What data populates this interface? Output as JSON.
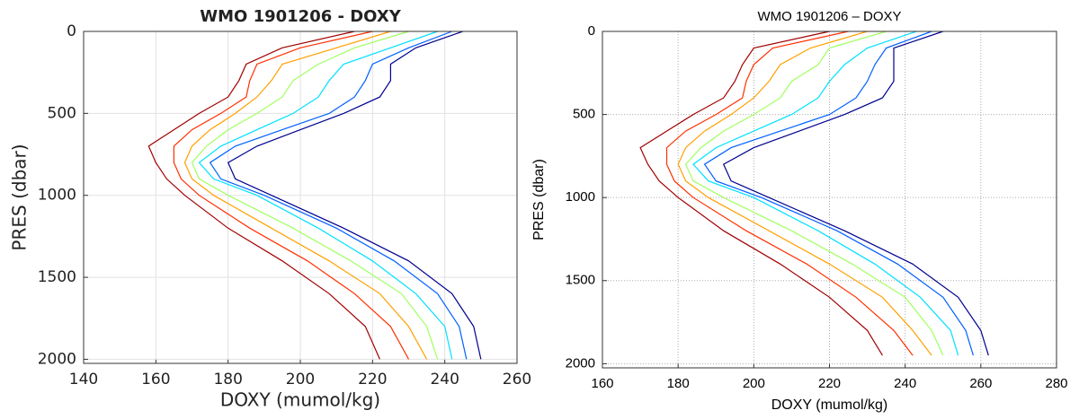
{
  "chart_data": [
    {
      "type": "line",
      "title": "WMO 1901206 - DOXY",
      "xlabel": "DOXY (mumol/kg)",
      "ylabel": "PRES (dbar)",
      "xlim": [
        140,
        260
      ],
      "xticks": [
        140,
        160,
        180,
        200,
        220,
        240,
        260
      ],
      "ylim": [
        0,
        2025
      ],
      "yticks": [
        0,
        500,
        1000,
        1500,
        2000
      ],
      "y_inverted": true,
      "grid": "solid",
      "y": [
        0,
        100,
        200,
        300,
        400,
        500,
        600,
        700,
        800,
        900,
        1000,
        1200,
        1400,
        1600,
        1800,
        2000
      ],
      "series": [
        {
          "color": "#00008f",
          "values": [
            245,
            232,
            225,
            225,
            222,
            212,
            200,
            188,
            180,
            182,
            192,
            212,
            230,
            242,
            248,
            250
          ]
        },
        {
          "color": "#0060ff",
          "values": [
            242,
            230,
            220,
            218,
            215,
            208,
            195,
            182,
            175,
            178,
            190,
            210,
            226,
            238,
            244,
            246
          ]
        },
        {
          "color": "#00e0ff",
          "values": [
            238,
            225,
            212,
            208,
            205,
            198,
            188,
            178,
            172,
            176,
            188,
            205,
            220,
            232,
            240,
            242
          ]
        },
        {
          "color": "#a0ff60",
          "values": [
            230,
            215,
            205,
            198,
            195,
            188,
            180,
            174,
            170,
            172,
            180,
            198,
            214,
            228,
            235,
            238
          ]
        },
        {
          "color": "#ffa000",
          "values": [
            225,
            210,
            195,
            192,
            188,
            182,
            175,
            170,
            168,
            170,
            176,
            192,
            208,
            222,
            230,
            235
          ]
        },
        {
          "color": "#ff3000",
          "values": [
            220,
            200,
            188,
            186,
            185,
            178,
            170,
            165,
            165,
            167,
            172,
            186,
            202,
            215,
            225,
            230
          ]
        },
        {
          "color": "#a00000",
          "values": [
            215,
            195,
            185,
            183,
            180,
            172,
            165,
            158,
            160,
            163,
            168,
            180,
            195,
            208,
            218,
            222
          ]
        }
      ]
    },
    {
      "type": "line",
      "title": "WMO 1901206 – DOXY",
      "xlabel": "DOXY (mumol/kg)",
      "ylabel": "PRES (dbar)",
      "xlim": [
        160,
        280
      ],
      "xticks": [
        160,
        180,
        200,
        220,
        240,
        260,
        280
      ],
      "ylim": [
        0,
        2025
      ],
      "yticks": [
        0,
        500,
        1000,
        1500,
        2000
      ],
      "y_inverted": true,
      "grid": "dotted",
      "y": [
        0,
        100,
        200,
        300,
        400,
        500,
        600,
        700,
        800,
        900,
        1000,
        1200,
        1400,
        1600,
        1800,
        1950
      ],
      "series": [
        {
          "color": "#00008f",
          "values": [
            250,
            237,
            237,
            237,
            234,
            224,
            212,
            200,
            192,
            194,
            204,
            224,
            242,
            254,
            260,
            262
          ]
        },
        {
          "color": "#0060ff",
          "values": [
            247,
            235,
            232,
            230,
            227,
            220,
            207,
            194,
            187,
            190,
            202,
            222,
            238,
            250,
            256,
            258
          ]
        },
        {
          "color": "#00e0ff",
          "values": [
            243,
            230,
            224,
            220,
            217,
            210,
            200,
            190,
            184,
            188,
            200,
            217,
            232,
            244,
            252,
            254
          ]
        },
        {
          "color": "#a0ff60",
          "values": [
            235,
            220,
            217,
            210,
            207,
            200,
            192,
            186,
            182,
            184,
            192,
            210,
            226,
            240,
            247,
            250
          ]
        },
        {
          "color": "#ffa000",
          "values": [
            230,
            215,
            207,
            204,
            200,
            194,
            187,
            182,
            180,
            182,
            188,
            204,
            220,
            234,
            242,
            247
          ]
        },
        {
          "color": "#ff3000",
          "values": [
            225,
            205,
            200,
            198,
            197,
            190,
            182,
            177,
            177,
            179,
            184,
            198,
            214,
            227,
            237,
            242
          ]
        },
        {
          "color": "#a00000",
          "values": [
            220,
            200,
            197,
            195,
            192,
            184,
            177,
            170,
            172,
            175,
            180,
            192,
            207,
            220,
            230,
            234
          ]
        }
      ]
    }
  ]
}
